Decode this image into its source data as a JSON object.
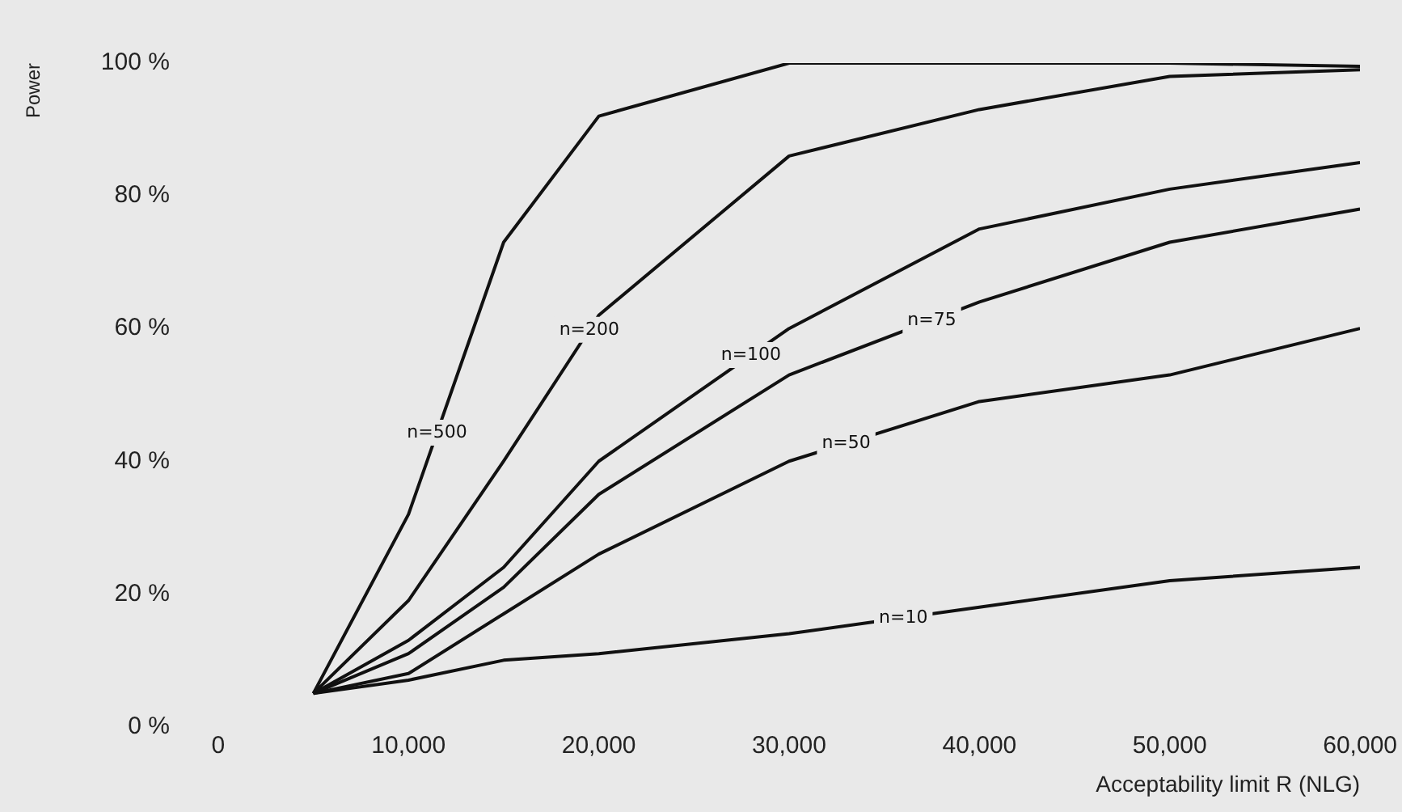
{
  "chart_data": {
    "type": "line",
    "xlabel": "Acceptability limit R (NLG)",
    "ylabel": "Power",
    "x": [
      5000,
      10000,
      15000,
      20000,
      30000,
      40000,
      50000,
      60000
    ],
    "series": [
      {
        "name": "n=500",
        "color": "#111111",
        "values": [
          5,
          32,
          73,
          92,
          100,
          100,
          100,
          99.5
        ]
      },
      {
        "name": "n=200",
        "color": "#111111",
        "values": [
          5,
          19,
          40,
          62,
          86,
          93,
          98,
          99
        ]
      },
      {
        "name": "n=100",
        "color": "#111111",
        "values": [
          5,
          13,
          24,
          40,
          60,
          75,
          81,
          85
        ]
      },
      {
        "name": "n=75",
        "color": "#111111",
        "values": [
          5,
          11,
          21,
          35,
          53,
          64,
          73,
          78
        ]
      },
      {
        "name": "n=50",
        "color": "#111111",
        "values": [
          5,
          8,
          17,
          26,
          40,
          49,
          53,
          60
        ]
      },
      {
        "name": "n=10",
        "color": "#111111",
        "values": [
          5,
          7,
          10,
          11,
          14,
          18,
          22,
          24
        ]
      }
    ],
    "xlim": [
      0,
      60000
    ],
    "ylim": [
      0,
      100
    ],
    "xticks": [
      {
        "value": 0,
        "label": "0"
      },
      {
        "value": 10000,
        "label": "10,000"
      },
      {
        "value": 20000,
        "label": "20,000"
      },
      {
        "value": 30000,
        "label": "30,000"
      },
      {
        "value": 40000,
        "label": "40,000"
      },
      {
        "value": 50000,
        "label": "50,000"
      },
      {
        "value": 60000,
        "label": "60,000"
      }
    ],
    "yticks": [
      {
        "value": 0,
        "label": "0 %"
      },
      {
        "value": 20,
        "label": "20 %"
      },
      {
        "value": 40,
        "label": "40 %"
      },
      {
        "value": 60,
        "label": "60 %"
      },
      {
        "value": 80,
        "label": "80 %"
      },
      {
        "value": 100,
        "label": "100 %"
      }
    ],
    "grid": false,
    "legend": false,
    "marker": "none",
    "line_style": "solid"
  }
}
